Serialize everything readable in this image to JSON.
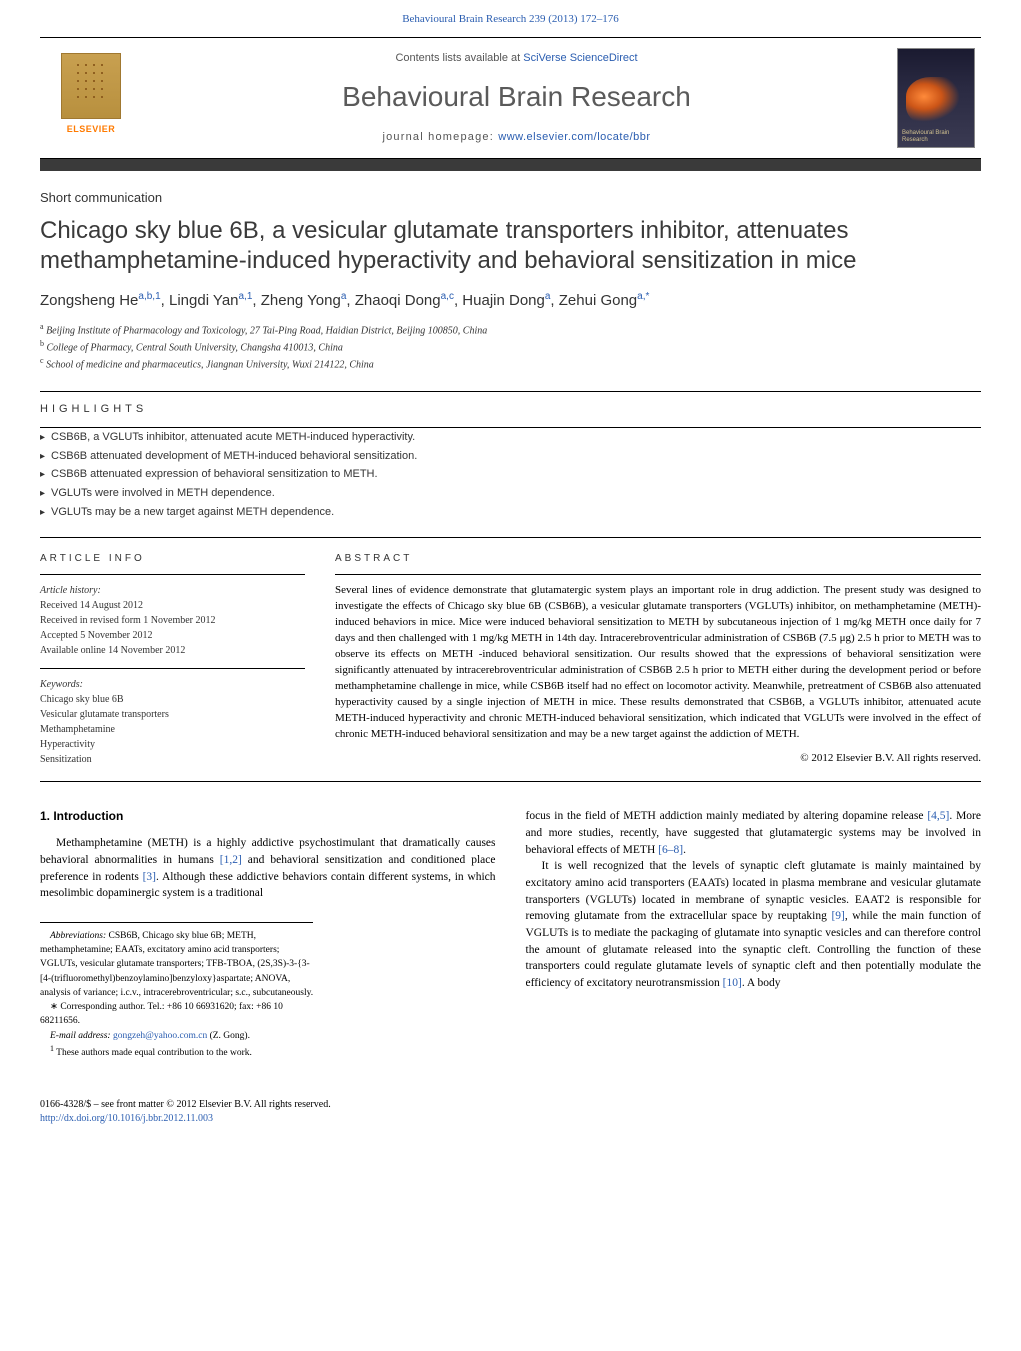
{
  "header": {
    "citation_journal": "Behavioural Brain Research",
    "citation_volume": "239 (2013) 172–176",
    "contents_prefix": "Contents lists available at",
    "contents_link": "SciVerse ScienceDirect",
    "journal_title": "Behavioural Brain Research",
    "homepage_label": "journal homepage:",
    "homepage_url": "www.elsevier.com/locate/bbr",
    "elsevier_label": "ELSEVIER",
    "cover_label": "Behavioural Brain Research"
  },
  "article": {
    "type_label": "Short communication",
    "title": "Chicago sky blue 6B, a vesicular glutamate transporters inhibitor, attenuates methamphetamine-induced hyperactivity and behavioral sensitization in mice",
    "authors_html": "Zongsheng He<sup>a,b,1</sup>, Lingdi Yan<sup>a,1</sup>, Zheng Yong<sup>a</sup>, Zhaoqi Dong<sup>a,c</sup>, Huajin Dong<sup>a</sup>, Zehui Gong<sup>a,*</sup>",
    "affiliations": [
      {
        "sup": "a",
        "text": "Beijing Institute of Pharmacology and Toxicology, 27 Tai-Ping Road, Haidian District, Beijing 100850, China"
      },
      {
        "sup": "b",
        "text": "College of Pharmacy, Central South University, Changsha 410013, China"
      },
      {
        "sup": "c",
        "text": "School of medicine and pharmaceutics, Jiangnan University, Wuxi 214122, China"
      }
    ]
  },
  "highlights": {
    "heading": "HIGHLIGHTS",
    "items": [
      "CSB6B, a VGLUTs inhibitor, attenuated acute METH-induced hyperactivity.",
      "CSB6B attenuated development of METH-induced behavioral sensitization.",
      "CSB6B attenuated expression of behavioral sensitization to METH.",
      "VGLUTs were involved in METH dependence.",
      "VGLUTs may be a new target against METH dependence."
    ]
  },
  "article_info": {
    "heading": "ARTICLE INFO",
    "history_label": "Article history:",
    "history": [
      "Received 14 August 2012",
      "Received in revised form 1 November 2012",
      "Accepted 5 November 2012",
      "Available online 14 November 2012"
    ],
    "keywords_label": "Keywords:",
    "keywords": [
      "Chicago sky blue 6B",
      "Vesicular glutamate transporters",
      "Methamphetamine",
      "Hyperactivity",
      "Sensitization"
    ]
  },
  "abstract": {
    "heading": "ABSTRACT",
    "body": "Several lines of evidence demonstrate that glutamatergic system plays an important role in drug addiction. The present study was designed to investigate the effects of Chicago sky blue 6B (CSB6B), a vesicular glutamate transporters (VGLUTs) inhibitor, on methamphetamine (METH)-induced behaviors in mice. Mice were induced behavioral sensitization to METH by subcutaneous injection of 1 mg/kg METH once daily for 7 days and then challenged with 1 mg/kg METH in 14th day. Intracerebroventricular administration of CSB6B (7.5 μg) 2.5 h prior to METH was to observe its effects on METH -induced behavioral sensitization. Our results showed that the expressions of behavioral sensitization were significantly attenuated by intracerebroventricular administration of CSB6B 2.5 h prior to METH either during the development period or before methamphetamine challenge in mice, while CSB6B itself had no effect on locomotor activity. Meanwhile, pretreatment of CSB6B also attenuated hyperactivity caused by a single injection of METH in mice. These results demonstrated that CSB6B, a VGLUTs inhibitor, attenuated acute METH-induced hyperactivity and chronic METH-induced behavioral sensitization, which indicated that VGLUTs were involved in the effect of chronic METH-induced behavioral sensitization and may be a new target against the addiction of METH.",
    "copyright": "© 2012 Elsevier B.V. All rights reserved."
  },
  "body": {
    "intro_heading": "1. Introduction",
    "col1": "Methamphetamine (METH) is a highly addictive psychostimulant that dramatically causes behavioral abnormalities in humans [1,2] and behavioral sensitization and conditioned place preference in rodents [3]. Although these addictive behaviors contain different systems, in which mesolimbic dopaminergic system is a traditional",
    "col2_p1": "focus in the field of METH addiction mainly mediated by altering dopamine release [4,5]. More and more studies, recently, have suggested that glutamatergic systems may be involved in behavioral effects of METH [6–8].",
    "col2_p2": "It is well recognized that the levels of synaptic cleft glutamate is mainly maintained by excitatory amino acid transporters (EAATs) located in plasma membrane and vesicular glutamate transporters (VGLUTs) located in membrane of synaptic vesicles. EAAT2 is responsible for removing glutamate from the extracellular space by reuptaking [9], while the main function of VGLUTs is to mediate the packaging of glutamate into synaptic vesicles and can therefore control the amount of glutamate released into the synaptic cleft. Controlling the function of these transporters could regulate glutamate levels of synaptic cleft and then potentially modulate the efficiency of excitatory neurotransmission [10]. A body"
  },
  "footnotes": {
    "abbrev_label": "Abbreviations:",
    "abbrev_text": "CSB6B, Chicago sky blue 6B; METH, methamphetamine; EAATs, excitatory amino acid transporters; VGLUTs, vesicular glutamate transporters; TFB-TBOA, (2S,3S)-3-{3-[4-(trifluoromethyl)benzoylamino]benzyloxy}aspartate; ANOVA, analysis of variance; i.c.v., intracerebroventricular; s.c., subcutaneously.",
    "corr_label": "∗",
    "corr_text": "Corresponding author. Tel.: +86 10 66931620; fax: +86 10 68211656.",
    "email_label": "E-mail address:",
    "email": "gongzeh@yahoo.com.cn",
    "email_suffix": "(Z. Gong).",
    "equal_label": "1",
    "equal_text": "These authors made equal contribution to the work."
  },
  "bottom": {
    "issn_line": "0166-4328/$ – see front matter © 2012 Elsevier B.V. All rights reserved.",
    "doi": "http://dx.doi.org/10.1016/j.bbr.2012.11.003"
  },
  "colors": {
    "link": "#2a5db0",
    "text": "#333333",
    "rule": "#000000",
    "darkbar": "#3a3a3a",
    "orange": "#ff7a00"
  },
  "typography": {
    "title_fontsize": 24,
    "journal_title_fontsize": 28,
    "body_fontsize": 11.5,
    "abstract_fontsize": 11,
    "footnote_fontsize": 9.5
  }
}
